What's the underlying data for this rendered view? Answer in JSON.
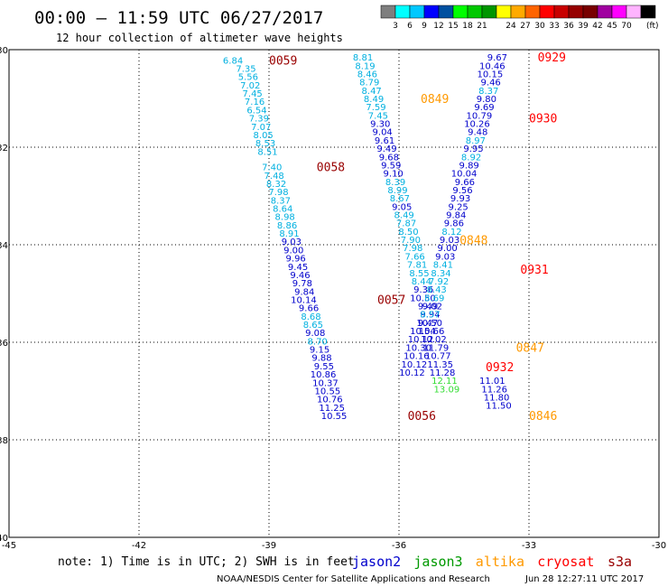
{
  "header": {
    "title": "00:00 – 11:59 UTC 06/27/2017",
    "subtitle": "12 hour collection of altimeter wave heights"
  },
  "colorbar": {
    "unit": "(ft)",
    "colors": [
      "#7f7f7f",
      "#00ffff",
      "#00c8ff",
      "#0000ff",
      "#0050a0",
      "#00ff00",
      "#00c800",
      "#009600",
      "#ffff00",
      "#ffaa00",
      "#ff6400",
      "#ff0000",
      "#c80000",
      "#960000",
      "#780000",
      "#a000a0",
      "#ff00ff",
      "#ffb4ff",
      "#000000"
    ],
    "ticks": [
      {
        "label": "3",
        "after": 1
      },
      {
        "label": "6",
        "after": 2
      },
      {
        "label": "9",
        "after": 3
      },
      {
        "label": "12",
        "after": 4
      },
      {
        "label": "15",
        "after": 5
      },
      {
        "label": "18",
        "after": 6
      },
      {
        "label": "21",
        "after": 7
      },
      {
        "label": "24",
        "after": 9
      },
      {
        "label": "27",
        "after": 10
      },
      {
        "label": "30",
        "after": 11
      },
      {
        "label": "33",
        "after": 12
      },
      {
        "label": "36",
        "after": 13
      },
      {
        "label": "39",
        "after": 14
      },
      {
        "label": "42",
        "after": 15
      },
      {
        "label": "45",
        "after": 16
      },
      {
        "label": "70",
        "after": 17
      }
    ]
  },
  "footer": {
    "note": "note: 1) Time is in UTC; 2) SWH is in feet",
    "legend": [
      {
        "name": "jason2",
        "color": "#0000cc"
      },
      {
        "name": "jason3",
        "color": "#009900"
      },
      {
        "name": "altika",
        "color": "#ff9900"
      },
      {
        "name": "cryosat",
        "color": "#ff0000"
      },
      {
        "name": "s3a",
        "color": "#990000"
      }
    ],
    "credit": "NOAA/NESDIS Center for Satellite Applications and Research",
    "timestamp": "Jun 28 12:27:11 UTC 2017"
  },
  "chart_data": {
    "type": "scatter",
    "xlabel": "",
    "ylabel": "",
    "xlim": [
      -45,
      -30
    ],
    "ylim": [
      -40,
      -30
    ],
    "xticks": [
      -45,
      -42,
      -39,
      -36,
      -33,
      -30
    ],
    "yticks": [
      -30,
      -32,
      -34,
      -36,
      -38,
      -40
    ],
    "grid": true,
    "series": [
      {
        "name": "s3a",
        "color": "#990000",
        "points": [
          {
            "x": -39.6,
            "y": -30.21,
            "v": 6.84
          },
          {
            "x": -39.3,
            "y": -30.38,
            "v": 7.35
          },
          {
            "x": -39.25,
            "y": -30.55,
            "v": 5.56
          },
          {
            "x": -39.2,
            "y": -30.72,
            "v": 7.02
          },
          {
            "x": -39.15,
            "y": -30.89,
            "v": 7.45
          },
          {
            "x": -39.1,
            "y": -31.06,
            "v": 7.16
          },
          {
            "x": -39.05,
            "y": -31.23,
            "v": 6.54
          },
          {
            "x": -39.0,
            "y": -31.4,
            "v": 7.39
          },
          {
            "x": -38.95,
            "y": -31.57,
            "v": 7.07
          },
          {
            "x": -38.9,
            "y": -31.74,
            "v": 8.05
          },
          {
            "x": -38.85,
            "y": -31.91,
            "v": 8.53
          },
          {
            "x": -38.8,
            "y": -32.08,
            "v": 8.51
          },
          {
            "x": -38.7,
            "y": -32.4,
            "v": 7.4
          },
          {
            "x": -38.65,
            "y": -32.57,
            "v": 7.48
          },
          {
            "x": -38.6,
            "y": -32.74,
            "v": 8.32
          },
          {
            "x": -38.55,
            "y": -32.91,
            "v": 7.98
          },
          {
            "x": -38.5,
            "y": -33.08,
            "v": 8.37
          },
          {
            "x": -38.45,
            "y": -33.25,
            "v": 8.64
          },
          {
            "x": -38.4,
            "y": -33.42,
            "v": 8.98
          },
          {
            "x": -38.35,
            "y": -33.59,
            "v": 8.86
          },
          {
            "x": -38.3,
            "y": -33.76,
            "v": 8.91
          },
          {
            "x": -38.25,
            "y": -33.93,
            "v": 9.03
          },
          {
            "x": -38.2,
            "y": -34.1,
            "v": 9.0
          },
          {
            "x": -38.15,
            "y": -34.27,
            "v": 9.96
          },
          {
            "x": -38.1,
            "y": -34.44,
            "v": 9.45
          },
          {
            "x": -38.05,
            "y": -34.61,
            "v": 9.46
          },
          {
            "x": -38.0,
            "y": -34.78,
            "v": 9.78
          },
          {
            "x": -37.95,
            "y": -34.95,
            "v": 9.84
          },
          {
            "x": -37.9,
            "y": -35.12,
            "v": 10.14
          },
          {
            "x": -37.85,
            "y": -35.29,
            "v": 9.66
          },
          {
            "x": -37.8,
            "y": -35.46,
            "v": 8.68
          },
          {
            "x": -37.75,
            "y": -35.63,
            "v": 8.65
          },
          {
            "x": -37.7,
            "y": -35.8,
            "v": 9.08
          },
          {
            "x": -37.65,
            "y": -35.97,
            "v": 8.7
          },
          {
            "x": -37.6,
            "y": -36.14,
            "v": 9.15
          },
          {
            "x": -37.55,
            "y": -36.31,
            "v": 9.88
          },
          {
            "x": -37.5,
            "y": -36.48,
            "v": 9.55
          },
          {
            "x": -37.45,
            "y": -36.65,
            "v": 10.86
          },
          {
            "x": -37.4,
            "y": -36.82,
            "v": 10.37
          },
          {
            "x": -37.35,
            "y": -36.99,
            "v": 10.55
          },
          {
            "x": -37.3,
            "y": -37.16,
            "v": 10.76
          },
          {
            "x": -37.25,
            "y": -37.33,
            "v": 11.25
          },
          {
            "x": -37.2,
            "y": -37.5,
            "v": 10.55
          }
        ]
      },
      {
        "name": "jason2",
        "color": "#0000cc",
        "points": [
          {
            "x": -36.6,
            "y": -30.15,
            "v": 8.81
          },
          {
            "x": -36.55,
            "y": -30.32,
            "v": 8.19
          },
          {
            "x": -36.5,
            "y": -30.49,
            "v": 8.46
          },
          {
            "x": -36.45,
            "y": -30.66,
            "v": 8.79
          },
          {
            "x": -36.4,
            "y": -30.83,
            "v": 8.47
          },
          {
            "x": -36.35,
            "y": -31.0,
            "v": 8.49
          },
          {
            "x": -36.3,
            "y": -31.17,
            "v": 7.59
          },
          {
            "x": -36.25,
            "y": -31.34,
            "v": 7.45
          },
          {
            "x": -36.2,
            "y": -31.51,
            "v": 9.3
          },
          {
            "x": -36.15,
            "y": -31.68,
            "v": 9.04
          },
          {
            "x": -36.1,
            "y": -31.85,
            "v": 9.61
          },
          {
            "x": -36.05,
            "y": -32.02,
            "v": 9.49
          },
          {
            "x": -36.0,
            "y": -32.19,
            "v": 9.68
          },
          {
            "x": -35.95,
            "y": -32.36,
            "v": 9.59
          },
          {
            "x": -35.9,
            "y": -32.53,
            "v": 9.1
          },
          {
            "x": -35.85,
            "y": -32.7,
            "v": 8.39
          },
          {
            "x": -35.8,
            "y": -32.87,
            "v": 8.99
          },
          {
            "x": -35.75,
            "y": -33.04,
            "v": 8.67
          },
          {
            "x": -35.7,
            "y": -33.21,
            "v": 9.05
          },
          {
            "x": -35.65,
            "y": -33.38,
            "v": 8.49
          },
          {
            "x": -35.6,
            "y": -33.55,
            "v": 7.87
          },
          {
            "x": -35.55,
            "y": -33.72,
            "v": 8.5
          },
          {
            "x": -35.5,
            "y": -33.89,
            "v": 7.9
          },
          {
            "x": -35.45,
            "y": -34.06,
            "v": 7.98
          },
          {
            "x": -35.4,
            "y": -34.23,
            "v": 7.66
          },
          {
            "x": -35.35,
            "y": -34.4,
            "v": 7.81
          },
          {
            "x": -35.3,
            "y": -34.57,
            "v": 8.55
          },
          {
            "x": -35.25,
            "y": -34.74,
            "v": 8.44
          },
          {
            "x": -35.2,
            "y": -34.91,
            "v": 9.36
          },
          {
            "x": -35.15,
            "y": -35.08,
            "v": 10.5
          },
          {
            "x": -35.1,
            "y": -35.25,
            "v": 9.49
          },
          {
            "x": -35.05,
            "y": -35.42,
            "v": 9.94
          },
          {
            "x": -35.0,
            "y": -35.59,
            "v": 10.5
          },
          {
            "x": -34.95,
            "y": -35.76,
            "v": 10.66
          },
          {
            "x": -34.9,
            "y": -35.93,
            "v": 10.02
          },
          {
            "x": -34.85,
            "y": -36.1,
            "v": 11.79
          },
          {
            "x": -34.8,
            "y": -36.27,
            "v": 10.77
          },
          {
            "x": -34.75,
            "y": -36.44,
            "v": 11.35
          },
          {
            "x": -34.7,
            "y": -36.61,
            "v": 11.28
          }
        ]
      },
      {
        "name": "jason3",
        "color": "#009900",
        "points": [
          {
            "x": -34.65,
            "y": -36.78,
            "v": 12.11
          },
          {
            "x": -34.6,
            "y": -36.95,
            "v": 13.09
          }
        ]
      },
      {
        "name": "cryosat",
        "color": "#ff0000",
        "points": [
          {
            "x": -33.5,
            "y": -30.15,
            "v": 9.67
          },
          {
            "x": -33.55,
            "y": -30.32,
            "v": 10.46
          },
          {
            "x": -33.6,
            "y": -30.49,
            "v": 10.15
          },
          {
            "x": -33.65,
            "y": -30.66,
            "v": 9.46
          },
          {
            "x": -33.7,
            "y": -30.83,
            "v": 8.37
          },
          {
            "x": -33.75,
            "y": -31.0,
            "v": 9.8
          },
          {
            "x": -33.8,
            "y": -31.17,
            "v": 9.69
          },
          {
            "x": -33.85,
            "y": -31.34,
            "v": 10.79
          },
          {
            "x": -33.9,
            "y": -31.51,
            "v": 10.26
          },
          {
            "x": -33.95,
            "y": -31.68,
            "v": 9.48
          },
          {
            "x": -34.0,
            "y": -31.85,
            "v": 8.97
          },
          {
            "x": -34.05,
            "y": -32.02,
            "v": 9.95
          },
          {
            "x": -34.1,
            "y": -32.19,
            "v": 8.92
          },
          {
            "x": -34.15,
            "y": -32.36,
            "v": 9.89
          },
          {
            "x": -34.2,
            "y": -32.53,
            "v": 10.04
          },
          {
            "x": -34.25,
            "y": -32.7,
            "v": 9.66
          },
          {
            "x": -34.3,
            "y": -32.87,
            "v": 9.56
          },
          {
            "x": -34.35,
            "y": -33.04,
            "v": 9.93
          },
          {
            "x": -34.4,
            "y": -33.21,
            "v": 9.25
          },
          {
            "x": -34.45,
            "y": -33.38,
            "v": 9.84
          },
          {
            "x": -34.5,
            "y": -33.55,
            "v": 9.86
          },
          {
            "x": -34.55,
            "y": -33.72,
            "v": 8.12
          },
          {
            "x": -34.6,
            "y": -33.89,
            "v": 9.03
          },
          {
            "x": -34.65,
            "y": -34.06,
            "v": 9.0
          },
          {
            "x": -34.7,
            "y": -34.23,
            "v": 9.03
          },
          {
            "x": -34.75,
            "y": -34.4,
            "v": 8.41
          },
          {
            "x": -34.8,
            "y": -34.57,
            "v": 8.34
          },
          {
            "x": -34.85,
            "y": -34.74,
            "v": 7.92
          },
          {
            "x": -34.9,
            "y": -34.91,
            "v": 8.43
          },
          {
            "x": -34.95,
            "y": -35.08,
            "v": 8.69
          },
          {
            "x": -35.0,
            "y": -35.25,
            "v": 9.02
          },
          {
            "x": -35.05,
            "y": -35.42,
            "v": 8.57
          },
          {
            "x": -35.1,
            "y": -35.59,
            "v": 9.47
          },
          {
            "x": -35.15,
            "y": -35.76,
            "v": 10.54
          },
          {
            "x": -35.2,
            "y": -35.93,
            "v": 10.12
          },
          {
            "x": -35.25,
            "y": -36.1,
            "v": 10.3
          },
          {
            "x": -35.3,
            "y": -36.27,
            "v": 10.16
          },
          {
            "x": -35.35,
            "y": -36.44,
            "v": 10.12
          },
          {
            "x": -35.4,
            "y": -36.61,
            "v": 10.12
          },
          {
            "x": -33.55,
            "y": -36.78,
            "v": 11.01
          },
          {
            "x": -33.5,
            "y": -36.95,
            "v": 11.26
          },
          {
            "x": -33.45,
            "y": -37.12,
            "v": 11.8
          },
          {
            "x": -33.4,
            "y": -37.29,
            "v": 11.5
          }
        ]
      }
    ],
    "annotations": [
      {
        "text": "0059",
        "x": -39.0,
        "y": -30.21,
        "color": "#990000"
      },
      {
        "text": "0058",
        "x": -37.9,
        "y": -32.4,
        "color": "#990000"
      },
      {
        "text": "0057",
        "x": -36.5,
        "y": -35.12,
        "color": "#990000"
      },
      {
        "text": "0056",
        "x": -35.8,
        "y": -37.5,
        "color": "#990000"
      },
      {
        "text": "0849",
        "x": -35.5,
        "y": -31.0,
        "color": "#ff9900"
      },
      {
        "text": "0847",
        "x": -33.3,
        "y": -36.1,
        "color": "#ff9900"
      },
      {
        "text": "0846",
        "x": -33.0,
        "y": -37.5,
        "color": "#ff9900"
      },
      {
        "text": "0929",
        "x": -32.8,
        "y": -30.15,
        "color": "#ff0000"
      },
      {
        "text": "0930",
        "x": -33.0,
        "y": -31.4,
        "color": "#ff0000"
      },
      {
        "text": "0931",
        "x": -33.2,
        "y": -34.5,
        "color": "#ff0000"
      },
      {
        "text": "0932",
        "x": -34.0,
        "y": -36.5,
        "color": "#ff0000"
      },
      {
        "text": "0848",
        "x": -34.6,
        "y": -33.9,
        "color": "#ff9900"
      }
    ]
  }
}
